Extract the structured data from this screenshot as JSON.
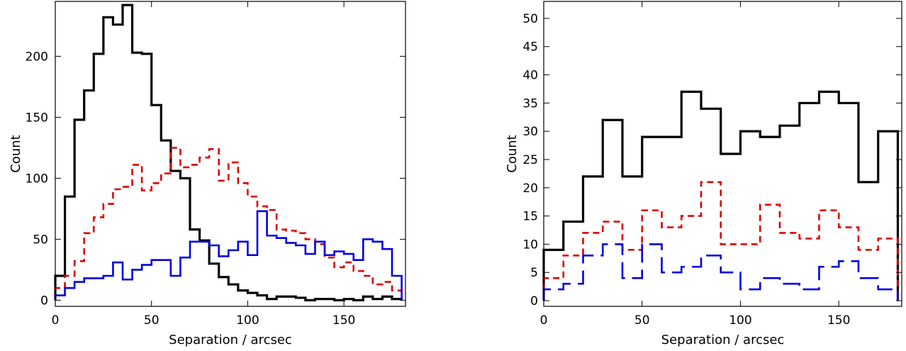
{
  "chart_data": [
    {
      "type": "histogram",
      "xlabel": "Separation / arcsec",
      "ylabel": "Count",
      "xlim": [
        0,
        182
      ],
      "ylim": [
        -5,
        245
      ],
      "xticks": [
        0,
        50,
        100,
        150
      ],
      "yticks": [
        0,
        50,
        100,
        150,
        200
      ],
      "bin_width": 5,
      "grid": false,
      "legend": "none",
      "series": [
        {
          "color": "#000000",
          "style": "solid",
          "values": [
            20,
            85,
            148,
            172,
            202,
            232,
            226,
            242,
            203,
            202,
            160,
            131,
            106,
            100,
            58,
            49,
            30,
            19,
            13,
            8,
            6,
            4,
            1,
            3,
            3,
            2,
            0,
            1,
            1,
            0,
            1,
            0,
            3,
            1,
            3,
            1
          ]
        },
        {
          "color": "#e00000",
          "style": "dashed",
          "values": [
            10,
            20,
            32,
            55,
            68,
            79,
            91,
            93,
            111,
            90,
            96,
            104,
            125,
            109,
            111,
            117,
            124,
            98,
            113,
            96,
            85,
            77,
            74,
            58,
            57,
            55,
            50,
            46,
            35,
            27,
            31,
            24,
            20,
            13,
            15,
            8
          ]
        },
        {
          "color": "#0000e6",
          "style": "solid",
          "values": [
            4,
            10,
            15,
            18,
            18,
            20,
            31,
            17,
            25,
            29,
            33,
            33,
            20,
            35,
            48,
            48,
            45,
            36,
            41,
            48,
            37,
            73,
            53,
            51,
            47,
            45,
            38,
            48,
            37,
            40,
            38,
            33,
            50,
            48,
            42,
            20
          ]
        }
      ]
    },
    {
      "type": "histogram",
      "xlabel": "Separation / arcsec",
      "ylabel": "Count",
      "xlim": [
        0,
        182
      ],
      "ylim": [
        -1,
        53
      ],
      "xticks": [
        0,
        50,
        100,
        150
      ],
      "yticks": [
        0,
        5,
        10,
        15,
        20,
        25,
        30,
        35,
        40,
        45,
        50
      ],
      "bin_width": 10,
      "grid": false,
      "legend": "none",
      "series": [
        {
          "color": "#000000",
          "style": "solid",
          "values": [
            9,
            14,
            22,
            32,
            22,
            29,
            29,
            37,
            34,
            26,
            30,
            29,
            31,
            35,
            37,
            35,
            21,
            30
          ]
        },
        {
          "color": "#e00000",
          "style": "dashed",
          "values": [
            4,
            8,
            12,
            14,
            9,
            16,
            13,
            15,
            21,
            10,
            10,
            17,
            12,
            11,
            16,
            13,
            9,
            11
          ]
        },
        {
          "color": "#0000e6",
          "style": "long-dashed",
          "values": [
            2,
            3,
            8,
            10,
            4,
            10,
            5,
            6,
            8,
            5,
            2,
            4,
            3,
            2,
            6,
            7,
            4,
            2
          ]
        }
      ]
    }
  ]
}
